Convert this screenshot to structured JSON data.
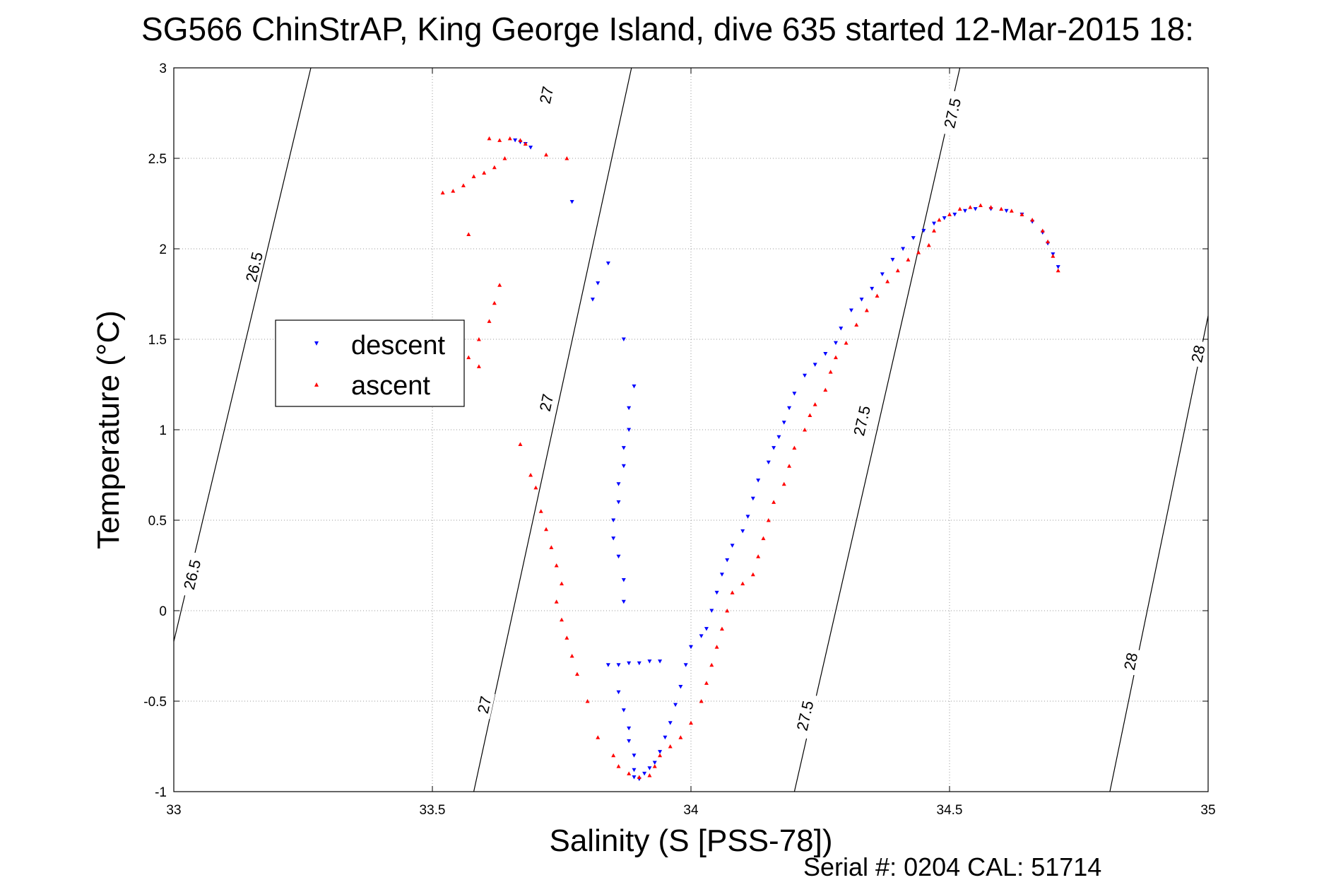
{
  "chart_data": {
    "type": "scatter",
    "title": "SG566 ChinStrAP, King George Island, dive 635 started 12-Mar-2015 18:",
    "xlabel": "Salinity (S [PSS-78])",
    "ylabel": "Temperature (°C)",
    "xlim": [
      33,
      35
    ],
    "ylim": [
      -1,
      3
    ],
    "xticks": [
      "33",
      "33.5",
      "34",
      "34.5",
      "35"
    ],
    "yticks": [
      "-1",
      "-0.5",
      "0",
      "0.5",
      "1",
      "1.5",
      "2",
      "2.5",
      "3"
    ],
    "grid": true,
    "legend_position": "upper-left",
    "footer_text": "Serial #: 0204  CAL: 51714",
    "series": [
      {
        "name": "descent",
        "color": "#0000ff",
        "marker": "triangle-down",
        "points": [
          [
            33.66,
            2.6
          ],
          [
            33.67,
            2.59
          ],
          [
            33.68,
            2.58
          ],
          [
            33.69,
            2.56
          ],
          [
            33.77,
            2.26
          ],
          [
            33.84,
            1.92
          ],
          [
            33.82,
            1.81
          ],
          [
            33.81,
            1.72
          ],
          [
            33.87,
            1.5
          ],
          [
            33.89,
            1.24
          ],
          [
            33.88,
            1.12
          ],
          [
            33.88,
            1.0
          ],
          [
            33.87,
            0.9
          ],
          [
            33.87,
            0.8
          ],
          [
            33.86,
            0.7
          ],
          [
            33.86,
            0.6
          ],
          [
            33.85,
            0.5
          ],
          [
            33.85,
            0.4
          ],
          [
            33.86,
            0.3
          ],
          [
            33.87,
            0.17
          ],
          [
            33.87,
            0.05
          ],
          [
            33.84,
            -0.3
          ],
          [
            33.86,
            -0.3
          ],
          [
            33.88,
            -0.29
          ],
          [
            33.9,
            -0.29
          ],
          [
            33.92,
            -0.28
          ],
          [
            33.94,
            -0.28
          ],
          [
            33.86,
            -0.45
          ],
          [
            33.87,
            -0.55
          ],
          [
            33.88,
            -0.65
          ],
          [
            33.88,
            -0.72
          ],
          [
            33.89,
            -0.8
          ],
          [
            33.89,
            -0.88
          ],
          [
            33.89,
            -0.92
          ],
          [
            33.9,
            -0.93
          ],
          [
            33.91,
            -0.9
          ],
          [
            33.92,
            -0.87
          ],
          [
            33.93,
            -0.84
          ],
          [
            33.94,
            -0.78
          ],
          [
            33.95,
            -0.7
          ],
          [
            33.96,
            -0.62
          ],
          [
            33.97,
            -0.52
          ],
          [
            33.98,
            -0.42
          ],
          [
            33.99,
            -0.3
          ],
          [
            34.0,
            -0.2
          ],
          [
            34.02,
            -0.14
          ],
          [
            34.03,
            -0.1
          ],
          [
            34.04,
            0.0
          ],
          [
            34.05,
            0.1
          ],
          [
            34.06,
            0.2
          ],
          [
            34.07,
            0.28
          ],
          [
            34.08,
            0.36
          ],
          [
            34.1,
            0.44
          ],
          [
            34.11,
            0.52
          ],
          [
            34.12,
            0.62
          ],
          [
            34.13,
            0.72
          ],
          [
            34.15,
            0.82
          ],
          [
            34.16,
            0.9
          ],
          [
            34.17,
            0.96
          ],
          [
            34.18,
            1.04
          ],
          [
            34.19,
            1.12
          ],
          [
            34.2,
            1.2
          ],
          [
            34.22,
            1.3
          ],
          [
            34.24,
            1.36
          ],
          [
            34.26,
            1.42
          ],
          [
            34.28,
            1.48
          ],
          [
            34.29,
            1.56
          ],
          [
            34.31,
            1.66
          ],
          [
            34.33,
            1.72
          ],
          [
            34.35,
            1.78
          ],
          [
            34.37,
            1.86
          ],
          [
            34.39,
            1.94
          ],
          [
            34.41,
            2.0
          ],
          [
            34.43,
            2.06
          ],
          [
            34.45,
            2.1
          ],
          [
            34.47,
            2.14
          ],
          [
            34.49,
            2.17
          ],
          [
            34.51,
            2.19
          ],
          [
            34.53,
            2.21
          ],
          [
            34.55,
            2.22
          ],
          [
            34.58,
            2.22
          ],
          [
            34.61,
            2.21
          ],
          [
            34.64,
            2.19
          ],
          [
            34.66,
            2.15
          ],
          [
            34.68,
            2.09
          ],
          [
            34.69,
            2.03
          ],
          [
            34.7,
            1.97
          ],
          [
            34.71,
            1.9
          ]
        ]
      },
      {
        "name": "ascent",
        "color": "#ff0000",
        "marker": "triangle-up",
        "points": [
          [
            33.61,
            2.61
          ],
          [
            33.63,
            2.6
          ],
          [
            33.65,
            2.61
          ],
          [
            33.67,
            2.6
          ],
          [
            33.68,
            2.58
          ],
          [
            33.72,
            2.52
          ],
          [
            33.76,
            2.5
          ],
          [
            33.64,
            2.5
          ],
          [
            33.62,
            2.45
          ],
          [
            33.6,
            2.42
          ],
          [
            33.58,
            2.4
          ],
          [
            33.56,
            2.35
          ],
          [
            33.54,
            2.32
          ],
          [
            33.52,
            2.31
          ],
          [
            33.57,
            2.08
          ],
          [
            33.63,
            1.8
          ],
          [
            33.62,
            1.7
          ],
          [
            33.61,
            1.6
          ],
          [
            33.59,
            1.5
          ],
          [
            33.57,
            1.4
          ],
          [
            33.59,
            1.35
          ],
          [
            33.67,
            0.92
          ],
          [
            33.69,
            0.75
          ],
          [
            33.7,
            0.68
          ],
          [
            33.71,
            0.55
          ],
          [
            33.72,
            0.45
          ],
          [
            33.73,
            0.35
          ],
          [
            33.74,
            0.25
          ],
          [
            33.75,
            0.15
          ],
          [
            33.74,
            0.05
          ],
          [
            33.75,
            -0.05
          ],
          [
            33.76,
            -0.15
          ],
          [
            33.77,
            -0.25
          ],
          [
            33.78,
            -0.35
          ],
          [
            33.8,
            -0.5
          ],
          [
            33.82,
            -0.7
          ],
          [
            33.85,
            -0.8
          ],
          [
            33.86,
            -0.86
          ],
          [
            33.88,
            -0.9
          ],
          [
            33.9,
            -0.92
          ],
          [
            33.92,
            -0.91
          ],
          [
            33.93,
            -0.86
          ],
          [
            33.94,
            -0.8
          ],
          [
            33.96,
            -0.75
          ],
          [
            33.98,
            -0.7
          ],
          [
            34.0,
            -0.62
          ],
          [
            34.02,
            -0.5
          ],
          [
            34.03,
            -0.4
          ],
          [
            34.04,
            -0.3
          ],
          [
            34.05,
            -0.2
          ],
          [
            34.06,
            -0.1
          ],
          [
            34.07,
            0.0
          ],
          [
            34.08,
            0.1
          ],
          [
            34.1,
            0.15
          ],
          [
            34.12,
            0.2
          ],
          [
            34.13,
            0.3
          ],
          [
            34.14,
            0.4
          ],
          [
            34.15,
            0.5
          ],
          [
            34.16,
            0.6
          ],
          [
            34.18,
            0.7
          ],
          [
            34.19,
            0.8
          ],
          [
            34.2,
            0.9
          ],
          [
            34.22,
            1.0
          ],
          [
            34.23,
            1.08
          ],
          [
            34.24,
            1.14
          ],
          [
            34.26,
            1.22
          ],
          [
            34.27,
            1.32
          ],
          [
            34.28,
            1.4
          ],
          [
            34.3,
            1.48
          ],
          [
            34.32,
            1.58
          ],
          [
            34.34,
            1.66
          ],
          [
            34.36,
            1.74
          ],
          [
            34.38,
            1.82
          ],
          [
            34.4,
            1.88
          ],
          [
            34.42,
            1.94
          ],
          [
            34.44,
            1.98
          ],
          [
            34.46,
            2.02
          ],
          [
            34.47,
            2.1
          ],
          [
            34.48,
            2.16
          ],
          [
            34.5,
            2.19
          ],
          [
            34.52,
            2.22
          ],
          [
            34.54,
            2.23
          ],
          [
            34.56,
            2.24
          ],
          [
            34.58,
            2.23
          ],
          [
            34.6,
            2.22
          ],
          [
            34.62,
            2.21
          ],
          [
            34.64,
            2.19
          ],
          [
            34.66,
            2.16
          ],
          [
            34.68,
            2.1
          ],
          [
            34.69,
            2.04
          ],
          [
            34.7,
            1.96
          ],
          [
            34.71,
            1.88
          ]
        ]
      }
    ]
  },
  "contours": [
    {
      "label": "26.5",
      "line": [
        [
          33.0,
          -0.17
        ],
        [
          33.265,
          3.0
        ]
      ],
      "labels": [
        [
          33.155,
          1.9
        ],
        [
          33.035,
          0.2
        ]
      ]
    },
    {
      "label": "27",
      "line": [
        [
          33.58,
          -1.0
        ],
        [
          33.885,
          3.0
        ]
      ],
      "labels": [
        [
          33.72,
          2.85
        ],
        [
          33.72,
          1.15
        ],
        [
          33.6,
          -0.52
        ]
      ]
    },
    {
      "label": "27.5",
      "line": [
        [
          34.2,
          -1.0
        ],
        [
          34.52,
          3.0
        ]
      ],
      "labels": [
        [
          34.505,
          2.75
        ],
        [
          34.33,
          1.05
        ],
        [
          34.22,
          -0.58
        ]
      ]
    },
    {
      "label": "28",
      "line": [
        [
          34.81,
          -1.0
        ],
        [
          35.0,
          1.63
        ]
      ],
      "labels": [
        [
          34.98,
          1.42
        ],
        [
          34.85,
          -0.28
        ]
      ]
    }
  ]
}
